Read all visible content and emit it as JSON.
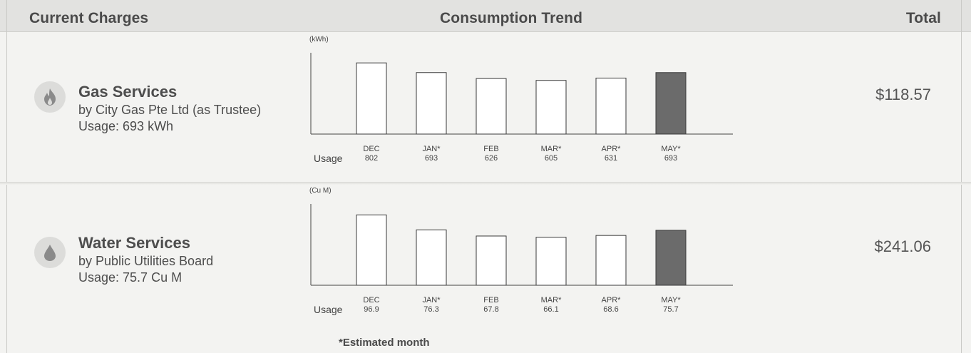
{
  "header": {
    "left": "Current Charges",
    "center": "Consumption Trend",
    "right": "Total"
  },
  "services": [
    {
      "name": "Gas Services",
      "provider": "by City Gas Pte Ltd (as Trustee)",
      "usage": "Usage: 693 kWh",
      "total": "$118.57",
      "icon": "flame-icon",
      "chart_unit": "(kWh)",
      "usage_label": "Usage"
    },
    {
      "name": "Water Services",
      "provider": "by Public Utilities Board",
      "usage": "Usage: 75.7 Cu M",
      "total": "$241.06",
      "icon": "water-drop-icon",
      "chart_unit": "(Cu M)",
      "usage_label": "Usage"
    }
  ],
  "footnote": "*Estimated month",
  "colors": {
    "bar_fill": "#ffffff",
    "bar_current": "#6b6b6b",
    "bar_stroke": "#3a3a3a",
    "icon_bg": "#dcdcda",
    "icon_fg": "#8a8a8a"
  },
  "chart_data": [
    {
      "type": "bar",
      "ylabel": "(kWh)",
      "categories": [
        "DEC",
        "JAN*",
        "FEB",
        "MAR*",
        "APR*",
        "MAY*"
      ],
      "values": [
        802,
        693,
        626,
        605,
        631,
        693
      ],
      "value_labels": [
        "802",
        "693",
        "626",
        "605",
        "631",
        "693"
      ],
      "highlight_index": 5,
      "ylim": [
        0,
        900
      ]
    },
    {
      "type": "bar",
      "ylabel": "(Cu M)",
      "categories": [
        "DEC",
        "JAN*",
        "FEB",
        "MAR*",
        "APR*",
        "MAY*"
      ],
      "values": [
        96.9,
        76.3,
        67.8,
        66.1,
        68.6,
        75.7
      ],
      "value_labels": [
        "96.9",
        "76.3",
        "67.8",
        "66.1",
        "68.6",
        "75.7"
      ],
      "highlight_index": 5,
      "ylim": [
        0,
        110
      ]
    }
  ]
}
